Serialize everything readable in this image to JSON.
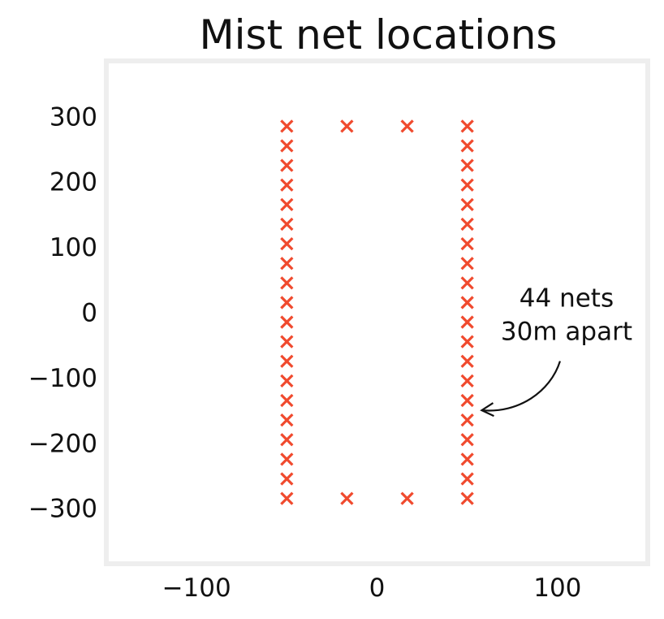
{
  "chart_data": {
    "type": "scatter",
    "title": "Mist net locations",
    "xlabel": "",
    "ylabel": "",
    "xlim": [
      -150,
      150
    ],
    "ylim": [
      -385,
      385
    ],
    "x_ticks": [
      {
        "value": -100,
        "label": "−100"
      },
      {
        "value": 0,
        "label": "0"
      },
      {
        "value": 100,
        "label": "100"
      }
    ],
    "y_ticks": [
      {
        "value": 300,
        "label": "300"
      },
      {
        "value": 200,
        "label": "200"
      },
      {
        "value": 100,
        "label": "100"
      },
      {
        "value": 0,
        "label": "0"
      },
      {
        "value": -100,
        "label": "−100"
      },
      {
        "value": -200,
        "label": "−200"
      },
      {
        "value": -300,
        "label": "−300"
      }
    ],
    "grid": false,
    "marker": "x",
    "marker_color": "#f04a2e",
    "frame_color": "#eeeeee",
    "annotation": {
      "lines": [
        "44 nets",
        "30m apart"
      ],
      "text_at": [
        105,
        -10
      ],
      "arrow_to": [
        58,
        -150
      ]
    },
    "series": [
      {
        "x": [
          -50,
          -50,
          -50,
          -50,
          -50,
          -50,
          -50,
          -50,
          -50,
          -50,
          -50,
          -50,
          -50,
          -50,
          -50,
          -50,
          -50,
          -50,
          -50,
          -50,
          50,
          50,
          50,
          50,
          50,
          50,
          50,
          50,
          50,
          50,
          50,
          50,
          50,
          50,
          50,
          50,
          50,
          50,
          50,
          50,
          -16.7,
          16.7,
          -16.7,
          16.7
        ],
        "y": [
          285,
          255,
          225,
          195,
          165,
          135,
          105,
          75,
          45,
          15,
          -15,
          -45,
          -75,
          -105,
          -135,
          -165,
          -195,
          -225,
          -255,
          -285,
          285,
          255,
          225,
          195,
          165,
          135,
          105,
          75,
          45,
          15,
          -15,
          -45,
          -75,
          -105,
          -135,
          -165,
          -195,
          -225,
          -255,
          -285,
          285,
          285,
          -285,
          -285
        ]
      }
    ]
  }
}
